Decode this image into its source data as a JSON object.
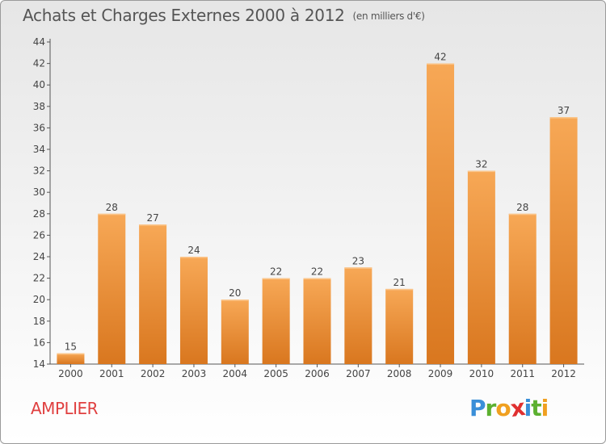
{
  "title": "Achats et Charges Externes 2000 à 2012",
  "subtitle": "(en milliers d'€)",
  "commune": "AMPLIER",
  "logo": {
    "text": "Proxiti",
    "letters": [
      {
        "char": "P",
        "color": "#3a8fd8"
      },
      {
        "char": "r",
        "color": "#5cb030"
      },
      {
        "char": "o",
        "color": "#f0a020"
      },
      {
        "char": "x",
        "color": "#e03030"
      },
      {
        "char": "i",
        "color": "#3a8fd8"
      },
      {
        "char": "t",
        "color": "#5cb030"
      },
      {
        "char": "i",
        "color": "#f0a020"
      }
    ]
  },
  "colors": {
    "bar_light": "#f7a856",
    "bar_dark": "#d9771f",
    "commune": "#e04040"
  },
  "chart_data": {
    "type": "bar",
    "title": "Achats et Charges Externes 2000 à 2012",
    "subtitle": "(en milliers d'€)",
    "categories": [
      "2000",
      "2001",
      "2002",
      "2003",
      "2004",
      "2005",
      "2006",
      "2007",
      "2008",
      "2009",
      "2010",
      "2011",
      "2012"
    ],
    "values": [
      15,
      28,
      27,
      24,
      20,
      22,
      22,
      23,
      21,
      42,
      32,
      28,
      37
    ],
    "ylim": [
      14,
      44
    ],
    "yticks": [
      14,
      16,
      18,
      20,
      22,
      24,
      26,
      28,
      30,
      32,
      34,
      36,
      38,
      40,
      42,
      44
    ],
    "grid": false,
    "legend": "none",
    "xlabel": "",
    "ylabel": ""
  }
}
